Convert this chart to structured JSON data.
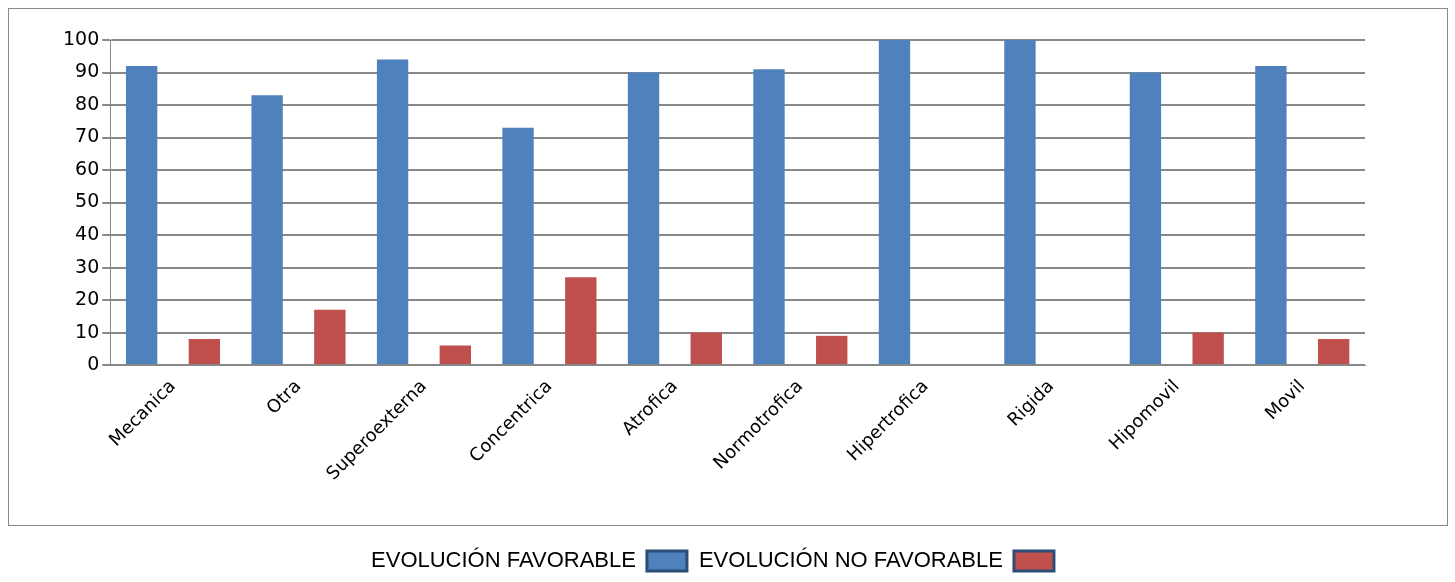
{
  "chart_data": {
    "type": "bar",
    "categories": [
      "Mecanica",
      "Otra",
      "Superoexterna",
      "Concentrica",
      "Atrofica",
      "Normotrofica",
      "Hipertrofica",
      "Rigida",
      "Hipomovil",
      "Movil"
    ],
    "series": [
      {
        "name": "EVOLUCIÓN FAVORABLE",
        "color": "#4f81bd",
        "values": [
          92,
          83,
          94,
          73,
          90,
          91,
          100,
          100,
          90,
          92
        ]
      },
      {
        "name": "EVOLUCIÓN NO FAVORABLE",
        "color": "#c0504d",
        "values": [
          8,
          17,
          6,
          27,
          10,
          9,
          0,
          0,
          10,
          8
        ]
      }
    ],
    "ylim": [
      0,
      100
    ],
    "yticks": [
      0,
      10,
      20,
      30,
      40,
      50,
      60,
      70,
      80,
      90,
      100
    ],
    "grid": "y",
    "legend": "bottom"
  }
}
